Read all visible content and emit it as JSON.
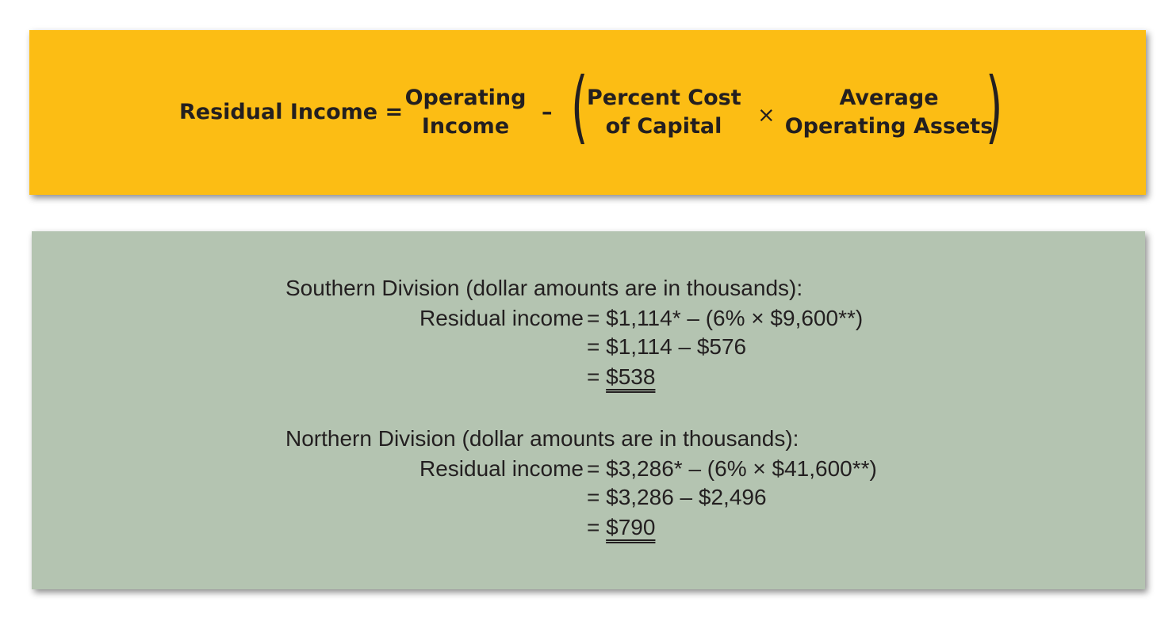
{
  "formula": {
    "lhs": "Residual Income =",
    "operating_income": [
      "Operating",
      "Income"
    ],
    "minus": "–",
    "open_paren": "(",
    "percent_cost": [
      "Percent Cost",
      "of Capital"
    ],
    "times": "×",
    "avg_assets": [
      "Average",
      "Operating Assets"
    ],
    "close_paren": ")"
  },
  "southern": {
    "heading": "Southern Division (dollar amounts are in thousands):",
    "label": "Residual income",
    "line1": "= $1,114* – (6% × $9,600**)",
    "line2": "= $1,114 – $576",
    "line3_eq": "= ",
    "line3_val": "$538"
  },
  "northern": {
    "heading": "Northern Division (dollar amounts are in thousands):",
    "label": "Residual income",
    "line1": "= $3,286* – (6% × $41,600**)",
    "line2": "= $3,286 – $2,496",
    "line3_eq": "= ",
    "line3_val": "$790"
  },
  "colors": {
    "formula_bg": "#fcbd14",
    "calc_bg": "#b4c4b1",
    "text": "#231f20"
  }
}
